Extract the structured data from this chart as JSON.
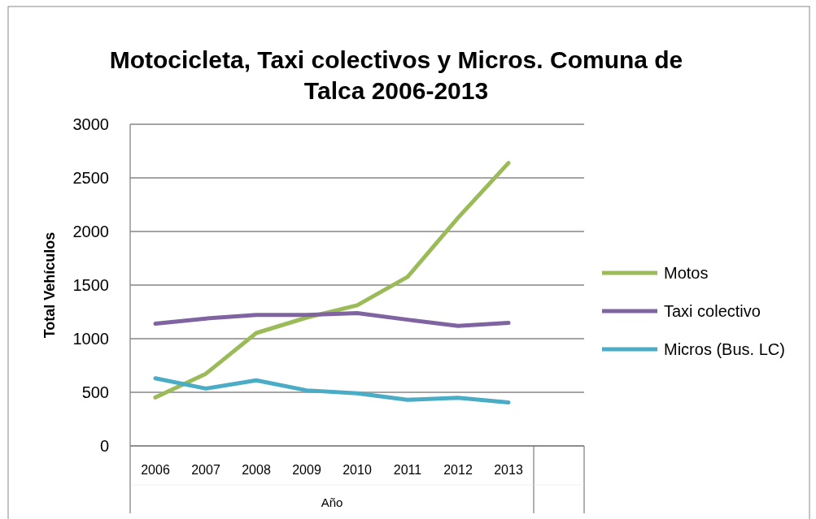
{
  "chart_data": {
    "type": "line",
    "title": "Motocicleta, Taxi colectivos y Micros. Comuna de Talca 2006-2013",
    "xlabel": "Año",
    "ylabel": "Total Vehículos",
    "categories": [
      "2006",
      "2007",
      "2008",
      "2009",
      "2010",
      "2011",
      "2012",
      "2013",
      null
    ],
    "series": [
      {
        "name": "Motos",
        "color": "#9bbb59",
        "values": [
          452,
          673,
          1053,
          1197,
          1312,
          1577,
          2128,
          2639,
          null
        ]
      },
      {
        "name": "Taxi colectivo",
        "color": "#8064a2",
        "values": [
          1141,
          1188,
          1221,
          1221,
          1238,
          1177,
          1119,
          1147,
          null
        ]
      },
      {
        "name": "Micros (Bus. LC)",
        "color": "#4bacc6",
        "values": [
          631,
          535,
          612,
          518,
          491,
          430,
          449,
          405,
          null
        ]
      }
    ],
    "ylim": [
      0,
      3000
    ],
    "yticks": [
      0,
      500,
      1000,
      1500,
      2000,
      2500,
      3000
    ],
    "grid": "y",
    "legend": "right",
    "marker": "none",
    "line_style": "solid"
  }
}
